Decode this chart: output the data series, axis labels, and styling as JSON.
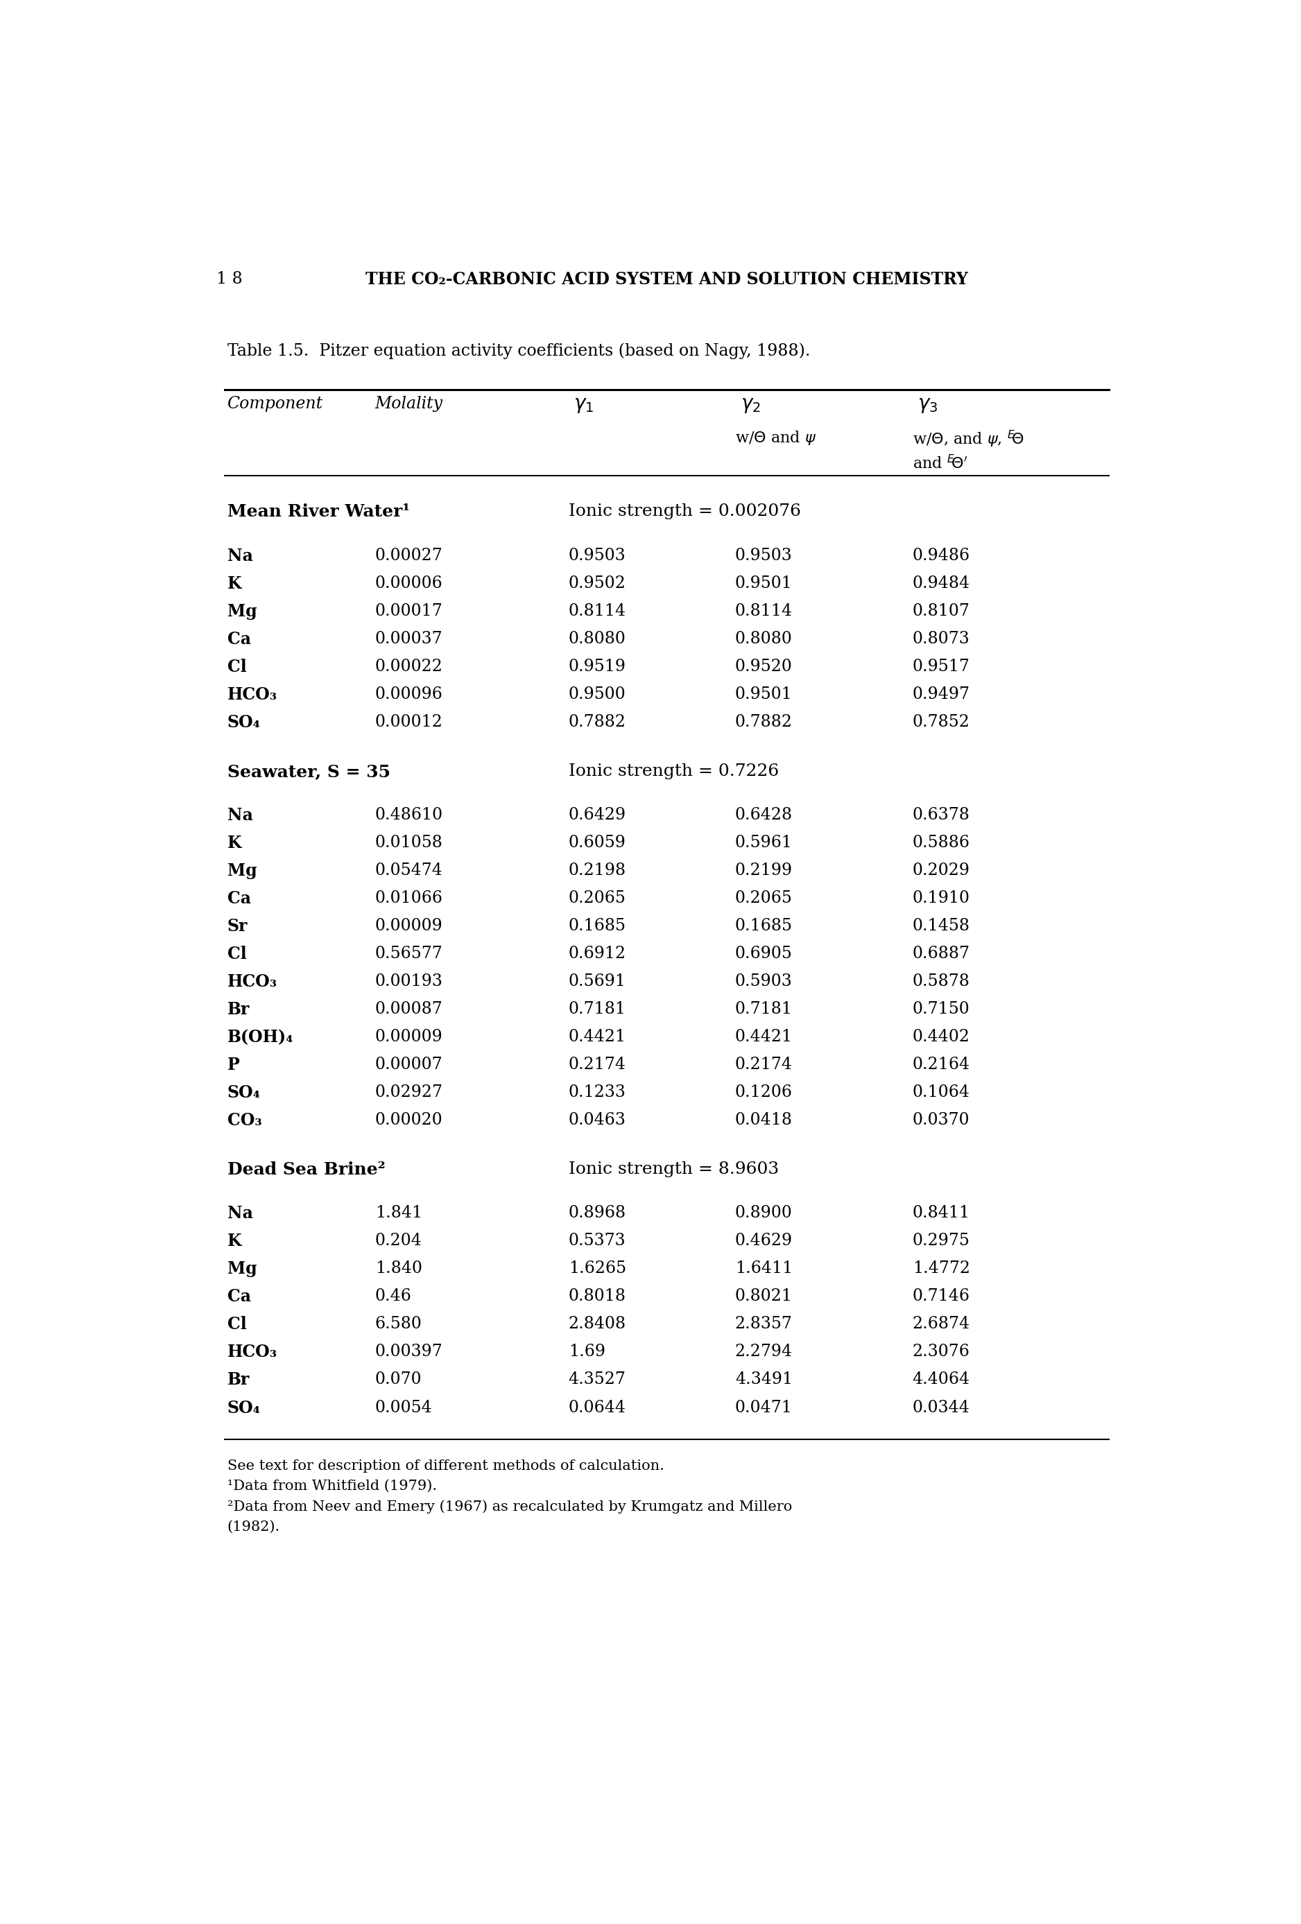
{
  "page_number": "1 8",
  "page_header": "THE CO₂-CARBONIC ACID SYSTEM AND SOLUTION CHEMISTRY",
  "table_title": "Table 1.5.  Pitzer equation activity coefficients (based on Nagy, 1988).",
  "sections": [
    {
      "section_label": "Mean River Water¹",
      "ionic_strength": "Ionic strength = 0.002076",
      "rows": [
        [
          "Na",
          "0.00027",
          "0.9503",
          "0.9503",
          "0.9486"
        ],
        [
          "K",
          "0.00006",
          "0.9502",
          "0.9501",
          "0.9484"
        ],
        [
          "Mg",
          "0.00017",
          "0.8114",
          "0.8114",
          "0.8107"
        ],
        [
          "Ca",
          "0.00037",
          "0.8080",
          "0.8080",
          "0.8073"
        ],
        [
          "Cl",
          "0.00022",
          "0.9519",
          "0.9520",
          "0.9517"
        ],
        [
          "HCO₃",
          "0.00096",
          "0.9500",
          "0.9501",
          "0.9497"
        ],
        [
          "SO₄",
          "0.00012",
          "0.7882",
          "0.7882",
          "0.7852"
        ]
      ]
    },
    {
      "section_label": "Seawater, S = 35",
      "ionic_strength": "Ionic strength = 0.7226",
      "rows": [
        [
          "Na",
          "0.48610",
          "0.6429",
          "0.6428",
          "0.6378"
        ],
        [
          "K",
          "0.01058",
          "0.6059",
          "0.5961",
          "0.5886"
        ],
        [
          "Mg",
          "0.05474",
          "0.2198",
          "0.2199",
          "0.2029"
        ],
        [
          "Ca",
          "0.01066",
          "0.2065",
          "0.2065",
          "0.1910"
        ],
        [
          "Sr",
          "0.00009",
          "0.1685",
          "0.1685",
          "0.1458"
        ],
        [
          "Cl",
          "0.56577",
          "0.6912",
          "0.6905",
          "0.6887"
        ],
        [
          "HCO₃",
          "0.00193",
          "0.5691",
          "0.5903",
          "0.5878"
        ],
        [
          "Br",
          "0.00087",
          "0.7181",
          "0.7181",
          "0.7150"
        ],
        [
          "B(OH)₄",
          "0.00009",
          "0.4421",
          "0.4421",
          "0.4402"
        ],
        [
          "P",
          "0.00007",
          "0.2174",
          "0.2174",
          "0.2164"
        ],
        [
          "SO₄",
          "0.02927",
          "0.1233",
          "0.1206",
          "0.1064"
        ],
        [
          "CO₃",
          "0.00020",
          "0.0463",
          "0.0418",
          "0.0370"
        ]
      ]
    },
    {
      "section_label": "Dead Sea Brine²",
      "ionic_strength": "Ionic strength = 8.9603",
      "rows": [
        [
          "Na",
          "1.841",
          "0.8968",
          "0.8900",
          "0.8411"
        ],
        [
          "K",
          "0.204",
          "0.5373",
          "0.4629",
          "0.2975"
        ],
        [
          "Mg",
          "1.840",
          "1.6265",
          "1.6411",
          "1.4772"
        ],
        [
          "Ca",
          "0.46",
          "0.8018",
          "0.8021",
          "0.7146"
        ],
        [
          "Cl",
          "6.580",
          "2.8408",
          "2.8357",
          "2.6874"
        ],
        [
          "HCO₃",
          "0.00397",
          "1.69",
          "2.2794",
          "2.3076"
        ],
        [
          "Br",
          "0.070",
          "4.3527",
          "4.3491",
          "4.4064"
        ],
        [
          "SO₄",
          "0.0054",
          "0.0644",
          "0.0471",
          "0.0344"
        ]
      ]
    }
  ],
  "footnotes": [
    "See text for description of different methods of calculation.",
    "¹Data from Whitfield (1979).",
    "²Data from Neev and Emery (1967) as recalculated by Krumgatz and Millero",
    "(1982)."
  ],
  "background_color": "#ffffff",
  "text_color": "#000000",
  "fs_page_hdr": 17,
  "fs_title": 17,
  "fs_col_hdr": 17,
  "fs_subhdr": 16,
  "fs_section": 18,
  "fs_body": 17,
  "fs_footnote": 15
}
